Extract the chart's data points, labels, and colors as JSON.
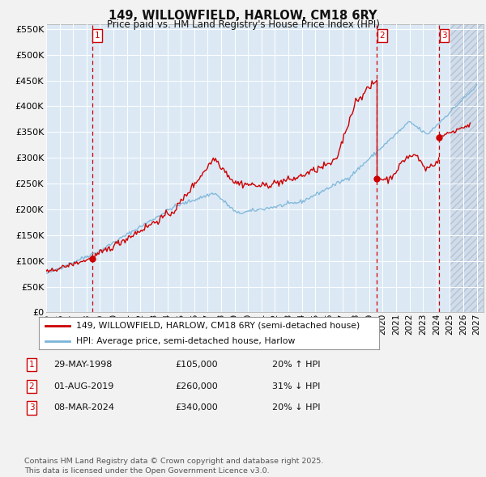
{
  "title": "149, WILLOWFIELD, HARLOW, CM18 6RY",
  "subtitle": "Price paid vs. HM Land Registry's House Price Index (HPI)",
  "bg_color": "#dce9f5",
  "grid_color": "#ffffff",
  "red_color": "#cc0000",
  "blue_color": "#7ab4d8",
  "fig_bg": "#f2f2f2",
  "ylim": [
    0,
    560000
  ],
  "yticks": [
    0,
    50000,
    100000,
    150000,
    200000,
    250000,
    300000,
    350000,
    400000,
    450000,
    500000,
    550000
  ],
  "sale1_date": 1998.41,
  "sale1_price": 105000,
  "sale2_date": 2019.58,
  "sale2_price": 260000,
  "sale3_date": 2024.18,
  "sale3_price": 340000,
  "legend_label_red": "149, WILLOWFIELD, HARLOW, CM18 6RY (semi-detached house)",
  "legend_label_blue": "HPI: Average price, semi-detached house, Harlow",
  "table_rows": [
    {
      "num": "1",
      "date": "29-MAY-1998",
      "price": "£105,000",
      "pct": "20% ↑ HPI"
    },
    {
      "num": "2",
      "date": "01-AUG-2019",
      "price": "£260,000",
      "pct": "31% ↓ HPI"
    },
    {
      "num": "3",
      "date": "08-MAR-2024",
      "price": "£340,000",
      "pct": "20% ↓ HPI"
    }
  ],
  "footnote": "Contains HM Land Registry data © Crown copyright and database right 2025.\nThis data is licensed under the Open Government Licence v3.0.",
  "xmin": 1995,
  "xmax": 2027.5,
  "hatch_start": 2025.0
}
